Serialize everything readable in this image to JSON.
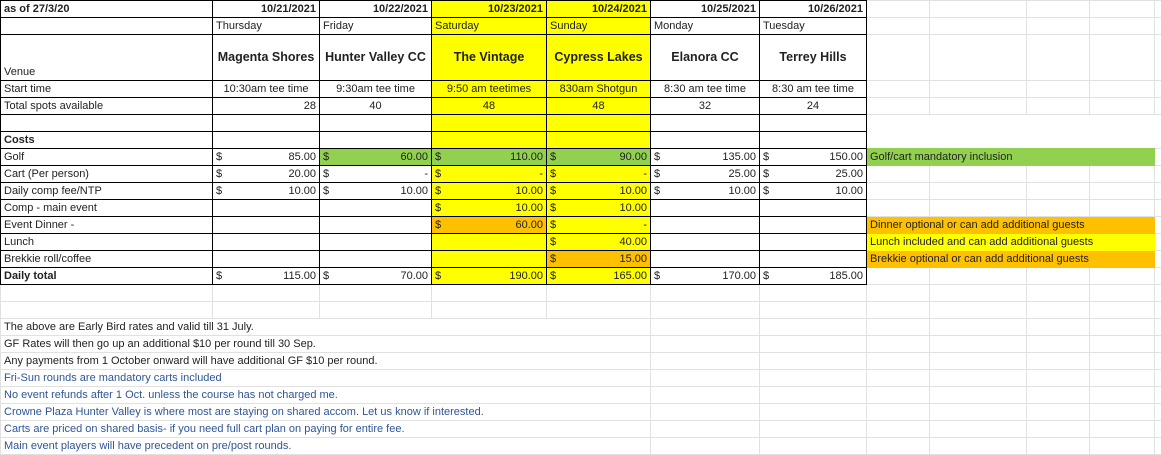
{
  "as_of": "as of 27/3/20",
  "colors": {
    "yellow": "#ffff00",
    "green": "#92d050",
    "orange": "#ffc000",
    "note_blue": "#2f5597"
  },
  "days": [
    {
      "date": "10/21/2021",
      "weekday": "Thursday",
      "venue": "Magenta Shores",
      "start": "10:30am tee time",
      "spots": "28"
    },
    {
      "date": "10/22/2021",
      "weekday": "Friday",
      "venue": "Hunter Valley CC",
      "start": "9:30am tee time",
      "spots": "40"
    },
    {
      "date": "10/23/2021",
      "weekday": "Saturday",
      "venue": "The Vintage",
      "start": "9:50 am teetimes",
      "spots": "48",
      "highlight": "#ffff00"
    },
    {
      "date": "10/24/2021",
      "weekday": "Sunday",
      "venue": "Cypress Lakes",
      "start": "830am Shotgun",
      "spots": "48",
      "highlight": "#ffff00"
    },
    {
      "date": "10/25/2021",
      "weekday": "Monday",
      "venue": "Elanora CC",
      "start": "8:30 am tee time",
      "spots": "32"
    },
    {
      "date": "10/26/2021",
      "weekday": "Tuesday",
      "venue": "Terrey Hills",
      "start": "8:30 am tee time",
      "spots": "24"
    }
  ],
  "labels": {
    "venue": "Venue",
    "start": "Start time",
    "spots": "Total spots available",
    "costs": "Costs"
  },
  "cost_rows": [
    {
      "label": "Golf",
      "values": [
        "85.00",
        "60.00",
        "110.00",
        "90.00",
        "135.00",
        "150.00"
      ],
      "fills": [
        null,
        "#92d050",
        "#92d050",
        "#92d050",
        null,
        null
      ],
      "note": "Golf/cart mandatory inclusion",
      "note_fill": "#92d050"
    },
    {
      "label": "Cart (Per person)",
      "values": [
        "20.00",
        "-",
        "-",
        "-",
        "25.00",
        "25.00"
      ],
      "fills": [
        null,
        null,
        null,
        null,
        null,
        null
      ]
    },
    {
      "label": "Daily comp fee/NTP",
      "values": [
        "10.00",
        "10.00",
        "10.00",
        "10.00",
        "10.00",
        "10.00"
      ],
      "fills": [
        null,
        null,
        null,
        null,
        null,
        null
      ]
    },
    {
      "label": "Comp - main event",
      "values": [
        null,
        null,
        "10.00",
        "10.00",
        null,
        null
      ],
      "fills": [
        null,
        null,
        null,
        null,
        null,
        null
      ]
    },
    {
      "label": "Event Dinner -",
      "values": [
        null,
        null,
        "60.00",
        "-",
        null,
        null
      ],
      "fills": [
        null,
        null,
        "#ffc000",
        null,
        null,
        null
      ],
      "note": "Dinner optional or can add additional guests",
      "note_fill": "#ffc000"
    },
    {
      "label": "Lunch",
      "values": [
        null,
        null,
        null,
        "40.00",
        null,
        null
      ],
      "fills": [
        null,
        null,
        null,
        null,
        null,
        null
      ],
      "note": "Lunch included and can add additional guests",
      "note_fill": "#ffff00"
    },
    {
      "label": "Brekkie roll/coffee",
      "values": [
        null,
        null,
        null,
        "15.00",
        null,
        null
      ],
      "fills": [
        null,
        null,
        null,
        "#ffc000",
        null,
        null
      ],
      "note": "Brekkie optional or can add additional guests",
      "note_fill": "#ffc000"
    }
  ],
  "total_row": {
    "label": "Daily total",
    "values": [
      "115.00",
      "70.00",
      "190.00",
      "165.00",
      "170.00",
      "185.00"
    ]
  },
  "currency": "$",
  "notes": [
    {
      "text": "The above are Early Bird rates and valid till 31 July.",
      "blue": false
    },
    {
      "text": "GF Rates will then go up an additional $10 per round till 30 Sep.",
      "blue": false
    },
    {
      "text": "Any payments from 1 October onward will have additional GF $10 per round.",
      "blue": false
    },
    {
      "text": "Fri-Sun rounds are mandatory carts included",
      "blue": true
    },
    {
      "text": "No event refunds after 1 Oct. unless the course has not charged me.",
      "blue": true
    },
    {
      "text": "Crowne Plaza Hunter Valley is where most are staying on shared accom. Let us know if interested.",
      "blue": true
    },
    {
      "text": "Carts are priced on shared basis- if you need full cart plan on paying for entire fee.",
      "blue": true
    },
    {
      "text": "Main event players will have precedent on pre/post rounds.",
      "blue": true
    }
  ]
}
